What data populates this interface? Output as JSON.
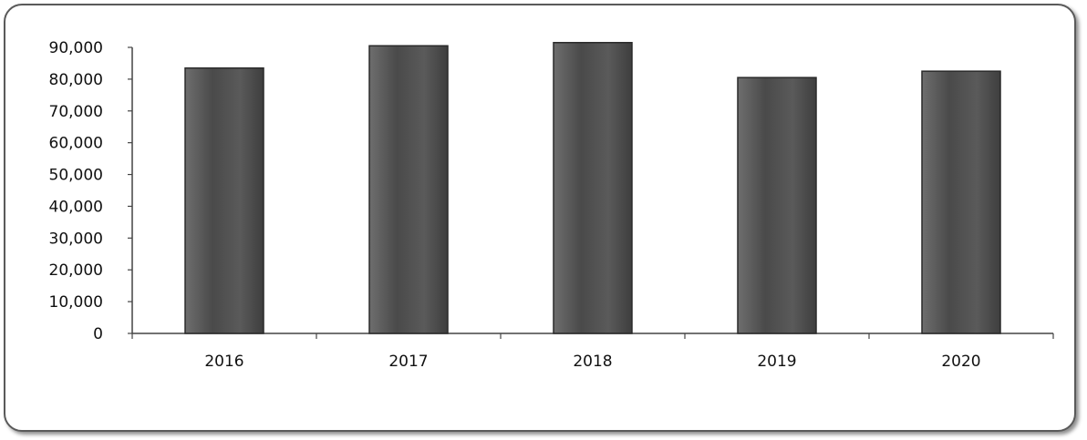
{
  "chart_data": {
    "type": "bar",
    "categories": [
      "2016",
      "2017",
      "2018",
      "2019",
      "2020"
    ],
    "values": [
      83500,
      90500,
      91500,
      80500,
      82500
    ],
    "yticks": [
      "0",
      "10,000",
      "20,000",
      "30,000",
      "40,000",
      "50,000",
      "60,000",
      "70,000",
      "80,000",
      "90,000"
    ],
    "ylim": [
      0,
      90000
    ],
    "title": "",
    "xlabel": "",
    "ylabel": "",
    "grid": false,
    "legend": "none",
    "colors": {
      "bar": "#555555",
      "bar_edge": "#2a2a2a",
      "axis": "#444444"
    }
  }
}
